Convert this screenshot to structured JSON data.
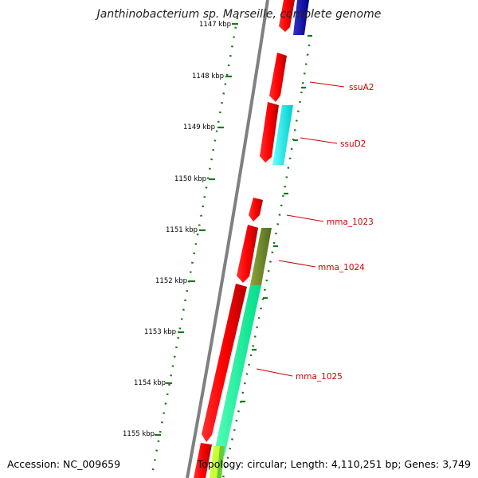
{
  "header": {
    "title": "Janthinobacterium sp. Marseille, complete genome"
  },
  "footer": {
    "accession": "Accession: NC_009659",
    "summary": "Topology: circular; Length: 4,110,251 bp; Genes: 3,749"
  },
  "scale": {
    "tick_labels": [
      "1147 kbp",
      "1148 kbp",
      "1149 kbp",
      "1150 kbp",
      "1151 kbp",
      "1152 kbp",
      "1153 kbp",
      "1154 kbp",
      "1155 kbp"
    ]
  },
  "colors": {
    "backbone": "#808080",
    "ruler": "#1a7a1a",
    "cds": "#ff0000",
    "label": "#cc0000"
  },
  "genes": [
    {
      "label": "ssuA2",
      "cds_color": "#ff0000",
      "feature_color": null
    },
    {
      "label": "ssuD2",
      "cds_color": "#ff0000",
      "feature_color": "#00ffff"
    },
    {
      "label": "mma_1023",
      "cds_color": "#ff0000",
      "feature_color": null
    },
    {
      "label": "mma_1024",
      "cds_color": "#ff0000",
      "feature_color": "#6b8e23"
    },
    {
      "label": "mma_1025",
      "cds_color": "#ff0000",
      "feature_color": "#00ff99"
    }
  ]
}
